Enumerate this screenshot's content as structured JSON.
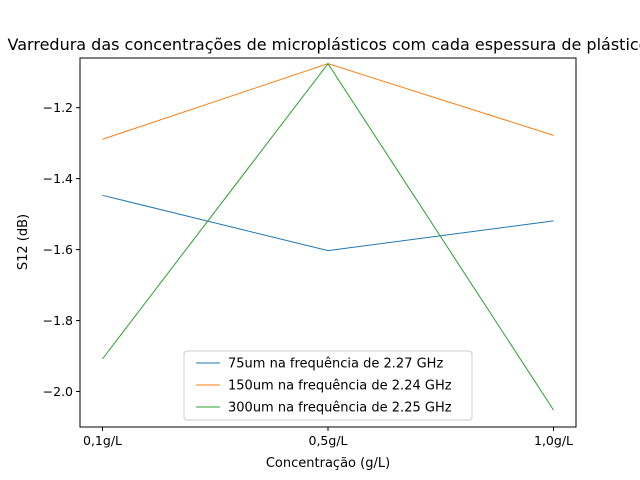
{
  "chart_data": {
    "type": "line",
    "title": "Varredura das concentrações de microplásticos com cada espessura de plástico",
    "xlabel": "Concentração (g/L)",
    "ylabel": "S12 (dB)",
    "categories": [
      "0,1g/L",
      "0,5g/L",
      "1,0g/L"
    ],
    "ylim": [
      -2.1,
      -1.06
    ],
    "yticks": [
      -2.0,
      -1.8,
      -1.6,
      -1.4,
      -1.2
    ],
    "ytick_labels": [
      "−2.0",
      "−1.8",
      "−1.6",
      "−1.4",
      "−1.2"
    ],
    "grid": false,
    "legend_position": "lower-center",
    "series": [
      {
        "name": "75um na frequência de 2.27 GHz",
        "color": "#1f77b4",
        "values": [
          -1.447,
          -1.603,
          -1.519
        ]
      },
      {
        "name": "150um na frequência de 2.24 GHz",
        "color": "#ff7f0e",
        "values": [
          -1.289,
          -1.076,
          -1.278
        ]
      },
      {
        "name": "300um na frequência de 2.25 GHz",
        "color": "#2ca02c",
        "values": [
          -1.908,
          -1.076,
          -2.052
        ]
      }
    ]
  }
}
